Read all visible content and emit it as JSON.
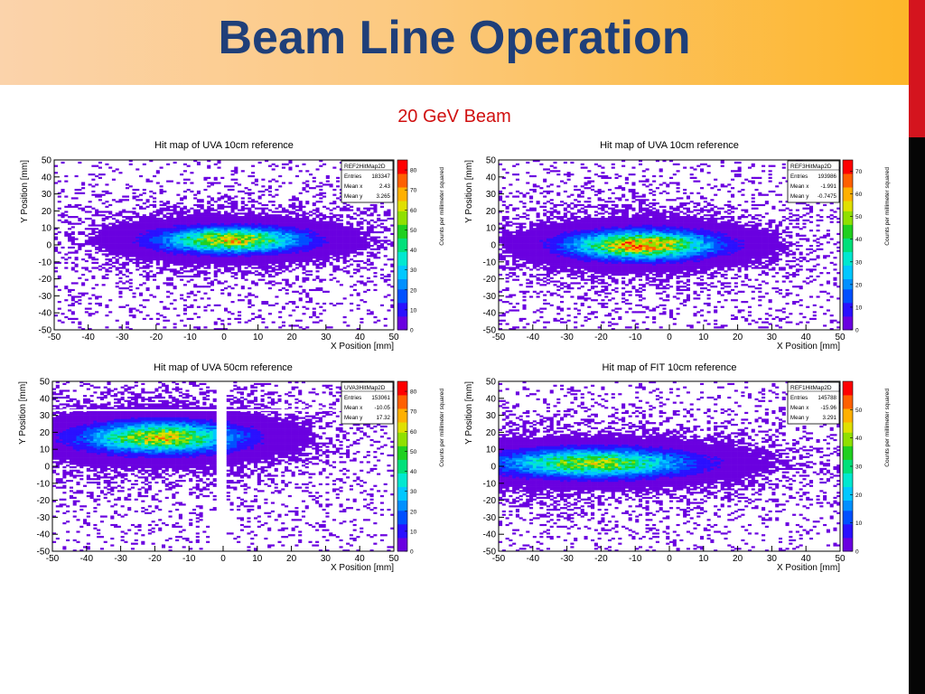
{
  "slide": {
    "title": "Beam Line Operation",
    "subtitle": "20 GeV Beam"
  },
  "colors": {
    "title": "#1f3f79",
    "subtitle": "#d01010",
    "header_gradient_start": "#fbd3ab",
    "header_gradient_end": "#fdb62a",
    "right_bar": "#050505",
    "right_bar_accent": "#d4141e"
  },
  "chart_data": [
    {
      "type": "heatmap",
      "title": "Hit map of UVA 10cm reference",
      "xlabel": "X Position [mm]",
      "ylabel": "Y Position [mm]",
      "zlabel": "Counts per millimeter squared",
      "xlim": [
        -50,
        50
      ],
      "ylim": [
        -50,
        50
      ],
      "zlim": [
        0,
        85
      ],
      "xticks": [
        -50,
        -40,
        -30,
        -20,
        -10,
        0,
        10,
        20,
        30,
        40,
        50
      ],
      "yticks": [
        -50,
        -40,
        -30,
        -20,
        -10,
        0,
        10,
        20,
        30,
        40,
        50
      ],
      "zticks": [
        0,
        10,
        20,
        30,
        40,
        50,
        60,
        70,
        80
      ],
      "stats": {
        "name": "REF2HitMap2D",
        "entries": "183347",
        "mean_x": "2.43",
        "mean_y": "3.265"
      },
      "beam": {
        "center_x": 2,
        "center_y": 3,
        "sigma_x": 13,
        "sigma_y": 4.5,
        "peak": 62,
        "mask_lo": null,
        "mask_hi": null,
        "hline": null
      }
    },
    {
      "type": "heatmap",
      "title": "Hit map of UVA 10cm reference",
      "xlabel": "X Position [mm]",
      "ylabel": "Y Position [mm]",
      "zlabel": "Counts per millimeter squared",
      "xlim": [
        -50,
        50
      ],
      "ylim": [
        -50,
        50
      ],
      "zlim": [
        0,
        75
      ],
      "xticks": [
        -50,
        -40,
        -30,
        -20,
        -10,
        0,
        10,
        20,
        30,
        40,
        50
      ],
      "yticks": [
        -50,
        -40,
        -30,
        -20,
        -10,
        0,
        10,
        20,
        30,
        40,
        50
      ],
      "zticks": [
        0,
        10,
        20,
        30,
        40,
        50,
        60,
        70
      ],
      "stats": {
        "name": "REF3HitMap2D",
        "entries": "193986",
        "mean_x": "-1.991",
        "mean_y": "-0.7475"
      },
      "beam": {
        "center_x": -8,
        "center_y": 0,
        "sigma_x": 13,
        "sigma_y": 5,
        "peak": 62,
        "mask_lo": null,
        "mask_hi": null,
        "hline": null
      }
    },
    {
      "type": "heatmap",
      "title": "Hit map of UVA 50cm reference",
      "xlabel": "X Position [mm]",
      "ylabel": "Y Position [mm]",
      "zlabel": "Counts per millimeter squared",
      "xlim": [
        -50,
        50
      ],
      "ylim": [
        -50,
        50
      ],
      "zlim": [
        0,
        85
      ],
      "xticks": [
        -50,
        -40,
        -30,
        -20,
        -10,
        0,
        10,
        20,
        30,
        40,
        50
      ],
      "yticks": [
        -50,
        -40,
        -30,
        -20,
        -10,
        0,
        10,
        20,
        30,
        40,
        50
      ],
      "zticks": [
        0,
        10,
        20,
        30,
        40,
        50,
        60,
        70,
        80
      ],
      "stats": {
        "name": "UVA3HitMap2D",
        "entries": "153061",
        "mean_x": "-10.05",
        "mean_y": "17.32"
      },
      "beam": {
        "center_x": -18,
        "center_y": 17,
        "sigma_x": 14,
        "sigma_y": 5.5,
        "peak": 60,
        "mask_lo": -2,
        "mask_hi": 1,
        "hline": 33
      }
    },
    {
      "type": "heatmap",
      "title": "Hit map of FIT 10cm reference",
      "xlabel": "X Position [mm]",
      "ylabel": "Y Position [mm]",
      "zlabel": "Counts per millimeter squared",
      "xlim": [
        -50,
        50
      ],
      "ylim": [
        -50,
        50
      ],
      "zlim": [
        0,
        60
      ],
      "xticks": [
        -50,
        -40,
        -30,
        -20,
        -10,
        0,
        10,
        20,
        30,
        40,
        50
      ],
      "yticks": [
        -50,
        -40,
        -30,
        -20,
        -10,
        0,
        10,
        20,
        30,
        40,
        50
      ],
      "zticks": [
        0,
        10,
        20,
        30,
        40,
        50
      ],
      "stats": {
        "name": "REF1HitMap2D",
        "entries": "145788",
        "mean_x": "-15.96",
        "mean_y": "3.291"
      },
      "beam": {
        "center_x": -22,
        "center_y": 2,
        "sigma_x": 17,
        "sigma_y": 5,
        "peak": 38,
        "mask_lo": null,
        "mask_hi": null,
        "hline": null
      }
    }
  ]
}
